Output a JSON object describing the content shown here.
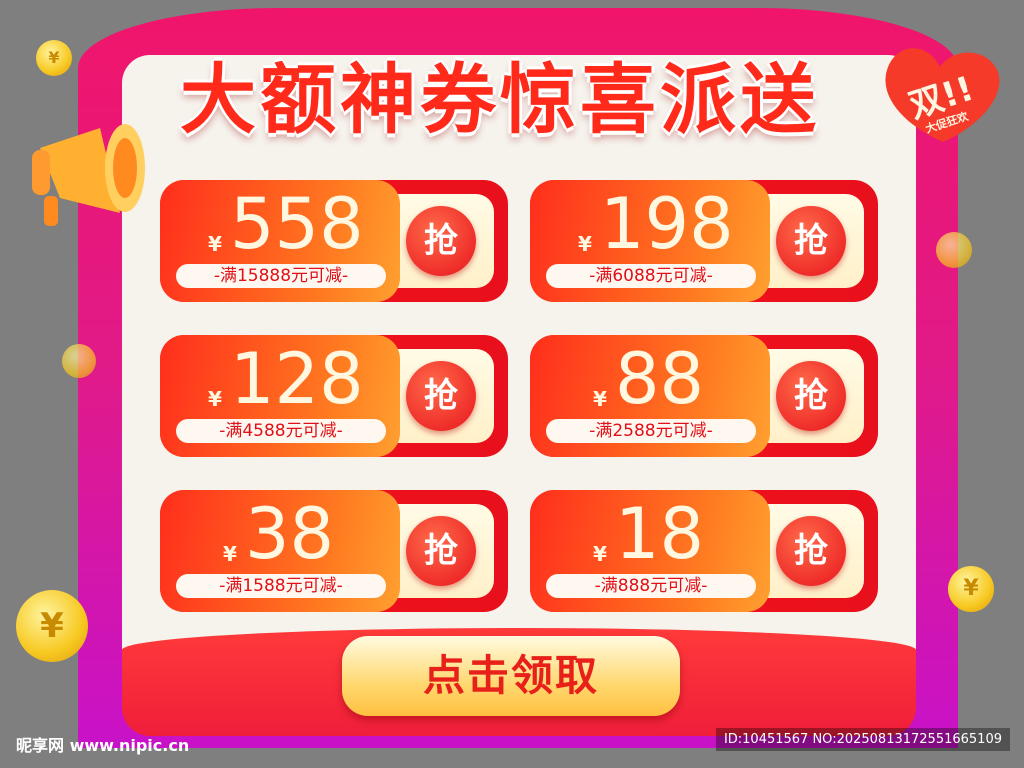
{
  "title": "大额神券惊喜派送",
  "badge": {
    "main": "双!!",
    "sub": "大促狂欢"
  },
  "currency": "¥",
  "grab_label": "抢",
  "coupons": [
    {
      "amount": "558",
      "condition": "-满15888元可减-"
    },
    {
      "amount": "198",
      "condition": "-满6088元可减-"
    },
    {
      "amount": "128",
      "condition": "-满4588元可减-"
    },
    {
      "amount": "88",
      "condition": "-满2588元可减-"
    },
    {
      "amount": "38",
      "condition": "-满1588元可减-"
    },
    {
      "amount": "18",
      "condition": "-满888元可减-"
    }
  ],
  "claim_button": "点击领取",
  "watermark": {
    "site": "昵享网 www.nipic.cn",
    "id": "ID:10451567 NO:20250813172551665109"
  },
  "colors": {
    "frame": "#e01a8a",
    "panel": "#f6f2ec",
    "accent": "#f01e3a",
    "button": "#ffd870"
  }
}
